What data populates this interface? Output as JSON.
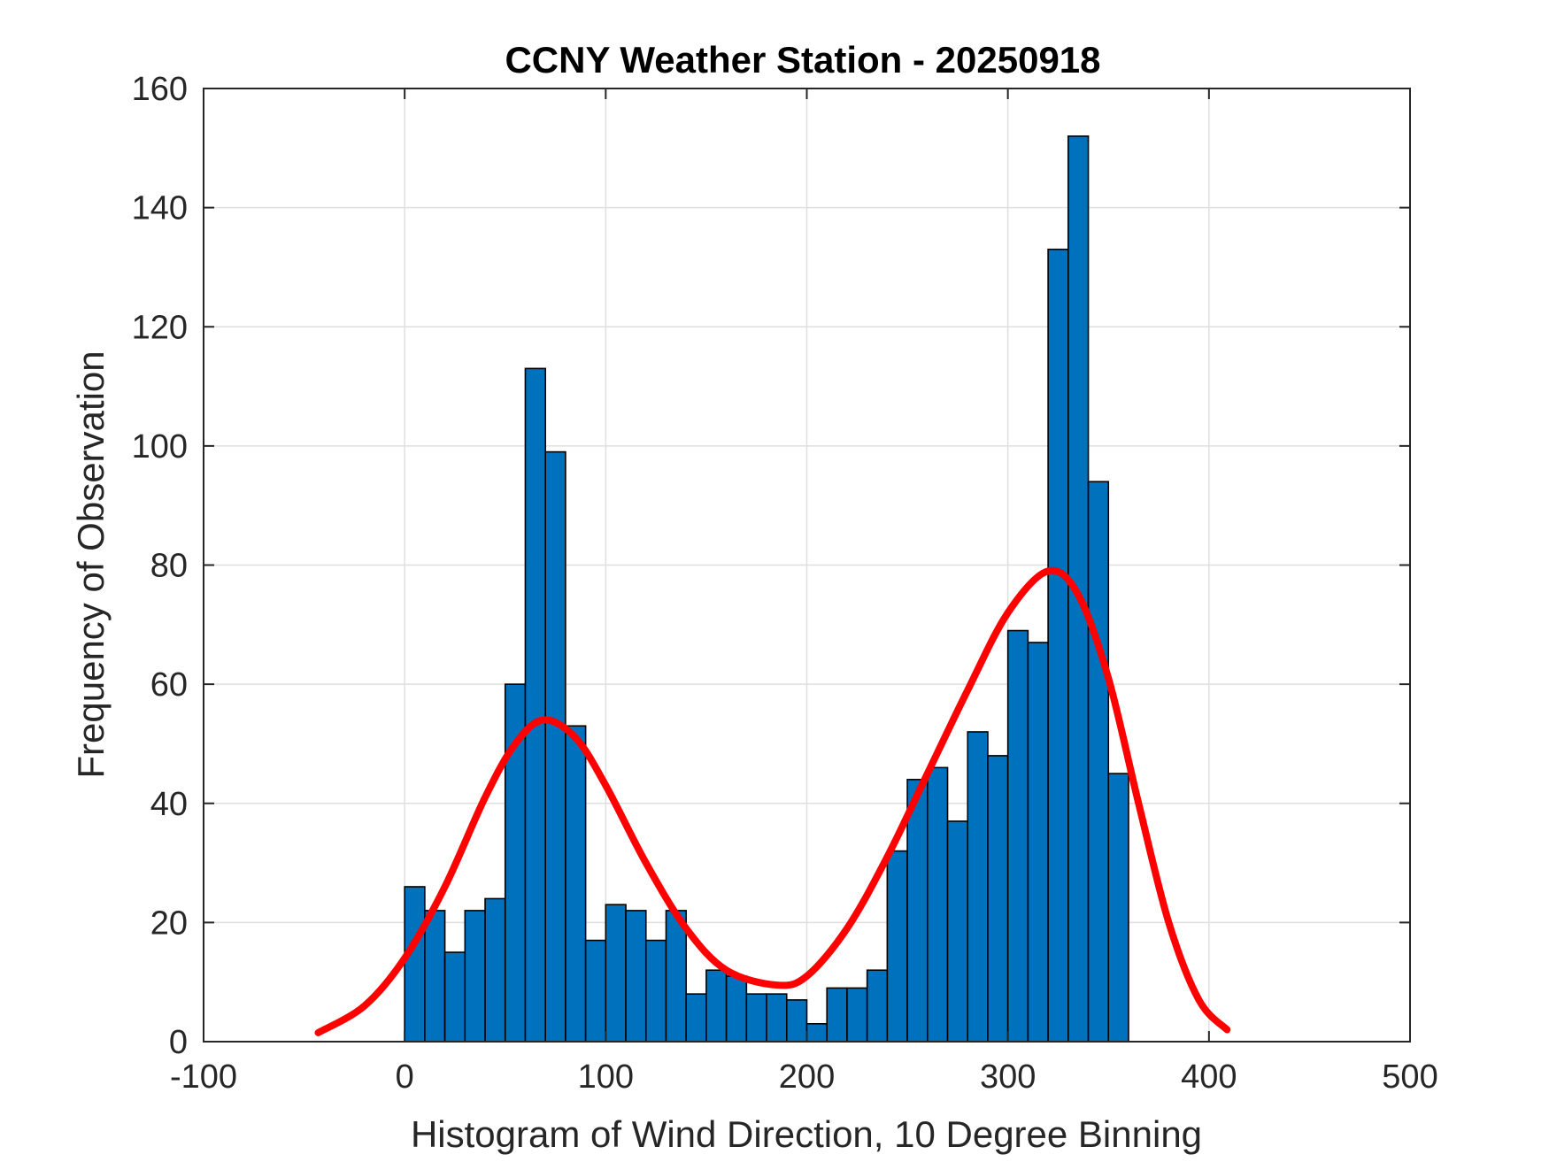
{
  "chart_data": {
    "type": "bar",
    "title": "CCNY Weather Station - 20250918",
    "xlabel": "Histogram of Wind Direction, 10 Degree Binning",
    "ylabel": "Frequency of Observation",
    "xlim": [
      -100,
      500
    ],
    "ylim": [
      0,
      160
    ],
    "xticks": [
      -100,
      0,
      100,
      200,
      300,
      400,
      500
    ],
    "yticks": [
      0,
      20,
      40,
      60,
      80,
      100,
      120,
      140,
      160
    ],
    "grid": true,
    "bin_width": 10,
    "bin_edges_start": 0,
    "series": [
      {
        "name": "Wind Direction Histogram",
        "color": "#0072BD",
        "values": [
          26,
          22,
          15,
          22,
          24,
          60,
          113,
          99,
          53,
          17,
          23,
          22,
          17,
          22,
          8,
          12,
          11,
          8,
          8,
          7,
          3,
          9,
          9,
          12,
          32,
          44,
          46,
          37,
          52,
          48,
          69,
          67,
          133,
          152,
          94,
          45
        ]
      },
      {
        "name": "Fitted Curve",
        "type": "line",
        "color": "#ff0000",
        "x": [
          -43,
          -20,
          0,
          20,
          40,
          55,
          69,
          85,
          100,
          120,
          140,
          160,
          185,
          200,
          220,
          240,
          260,
          280,
          300,
          320,
          335,
          350,
          365,
          380,
          395,
          409
        ],
        "values": [
          1.5,
          6,
          14,
          26,
          41,
          50,
          54,
          51,
          43,
          30,
          19,
          12,
          9.5,
          11,
          19,
          31,
          45,
          59,
          72,
          79,
          75,
          61,
          40,
          20,
          7,
          2
        ]
      }
    ]
  }
}
